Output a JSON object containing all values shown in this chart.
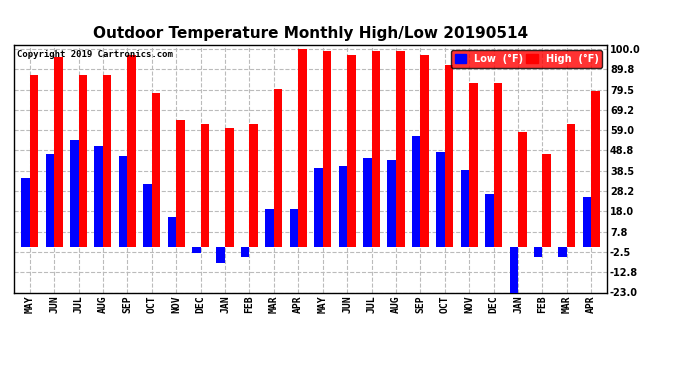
{
  "title": "Outdoor Temperature Monthly High/Low 20190514",
  "copyright": "Copyright 2019 Cartronics.com",
  "months": [
    "MAY",
    "JUN",
    "JUL",
    "AUG",
    "SEP",
    "OCT",
    "NOV",
    "DEC",
    "JAN",
    "FEB",
    "MAR",
    "APR",
    "MAY",
    "JUN",
    "JUL",
    "AUG",
    "SEP",
    "OCT",
    "NOV",
    "DEC",
    "JAN",
    "FEB",
    "MAR",
    "APR"
  ],
  "high": [
    87,
    96,
    87,
    87,
    97,
    78,
    64,
    62,
    60,
    62,
    80,
    100,
    99,
    97,
    99,
    99,
    97,
    92,
    83,
    83,
    58,
    47,
    62,
    79
  ],
  "low": [
    35,
    47,
    54,
    51,
    46,
    32,
    15,
    -3,
    -8,
    -5,
    19,
    19,
    40,
    41,
    45,
    44,
    56,
    48,
    39,
    27,
    -23,
    -5,
    -5,
    25
  ],
  "ylim": [
    -23,
    102
  ],
  "yticks": [
    100.0,
    89.8,
    79.5,
    69.2,
    59.0,
    48.8,
    38.5,
    28.2,
    18.0,
    7.8,
    -2.5,
    -12.8,
    -23.0
  ],
  "high_color": "#FF0000",
  "low_color": "#0000FF",
  "background_color": "#FFFFFF",
  "grid_color": "#BBBBBB",
  "title_fontsize": 11,
  "tick_fontsize": 7,
  "bar_width": 0.35
}
